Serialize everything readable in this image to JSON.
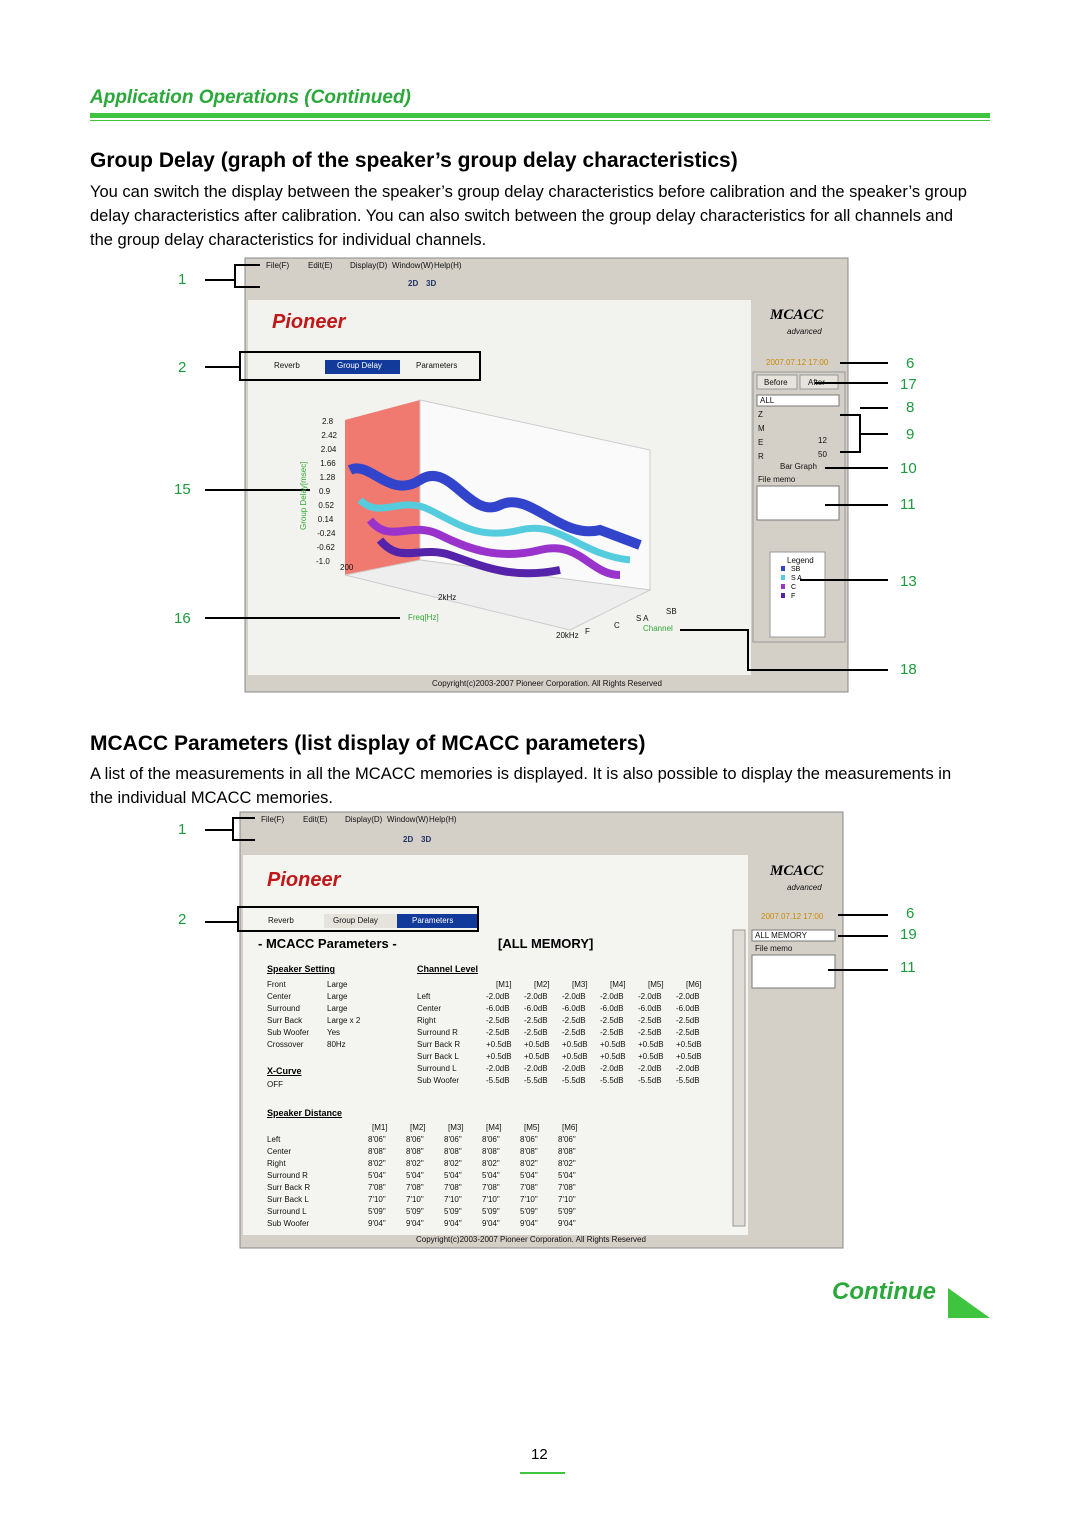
{
  "header": {
    "section": "Application Operations (Continued)"
  },
  "group_delay": {
    "heading": "Group Delay (graph of the speaker’s group delay characteristics)",
    "body": "You can switch the display between the speaker’s group delay characteristics before calibration and the speaker’s group delay characteristics after calibration. You can also switch between the group delay characteristics for all channels and the group delay characteristics for individual channels."
  },
  "window1": {
    "menu": [
      "File(F)",
      "Edit(E)",
      "Display(D)",
      "Window(W)",
      "Help(H)"
    ],
    "toolbar": [
      "2D",
      "3D"
    ],
    "brand": "Pioneer",
    "logo": "MCACC",
    "logo_sub": "advanced",
    "tabs": [
      "Reverb",
      "Group Delay",
      "Parameters"
    ],
    "date": "2007.07.12 17:00",
    "buttons": [
      "Before",
      "After"
    ],
    "select": "ALL",
    "sliders": [
      "Z",
      "M",
      "E",
      "R"
    ],
    "slider_values": [
      "12",
      "50"
    ],
    "bar_graph": "Bar Graph",
    "file_memo": "File memo",
    "y_label": "Group Delay[msec]",
    "y_ticks": [
      "2.8",
      "2.42",
      "2.04",
      "1.66",
      "1.28",
      "0.9",
      "0.52",
      "0.14",
      "-0.24",
      "-0.62",
      "-1.0"
    ],
    "x_ticks": [
      "200",
      "2kHz",
      "20kHz"
    ],
    "x_label": "Freq[Hz]",
    "channels": [
      "SB",
      "S A",
      "C",
      "F"
    ],
    "channel_label": "Channel",
    "legend_title": "Legend",
    "legend": [
      "SB",
      "S A",
      "C",
      "F"
    ],
    "copyright": "Copyright(c)2003-2007 Pioneer Corporation. All Rights Reserved"
  },
  "callouts1": {
    "left": [
      "1",
      "2",
      "15",
      "16"
    ],
    "right": [
      "6",
      "17",
      "8",
      "9",
      "10",
      "11",
      "13",
      "18"
    ]
  },
  "mcacc": {
    "heading": "MCACC Parameters (list display of MCACC parameters)",
    "body": "A list of the measurements in all the MCACC memories is displayed. It is also possible to display the measurements in the individual MCACC memories."
  },
  "window2": {
    "menu": [
      "File(F)",
      "Edit(E)",
      "Display(D)",
      "Window(W)",
      "Help(H)"
    ],
    "toolbar": [
      "2D",
      "3D"
    ],
    "brand": "Pioneer",
    "logo": "MCACC",
    "logo_sub": "advanced",
    "tabs": [
      "Reverb",
      "Group Delay",
      "Parameters"
    ],
    "date": "2007.07.12 17:00",
    "select": "ALL MEMORY",
    "file_memo": "File memo",
    "title": "- MCACC Parameters -",
    "memory": "[ALL MEMORY]",
    "speaker_setting": {
      "title": "Speaker Setting",
      "rows": [
        [
          "Front",
          "Large"
        ],
        [
          "Center",
          "Large"
        ],
        [
          "Surround",
          "Large"
        ],
        [
          "Surr Back",
          "Large x 2"
        ],
        [
          "Sub Woofer",
          "Yes"
        ],
        [
          "Crossover",
          "80Hz"
        ]
      ]
    },
    "x_curve": {
      "title": "X-Curve",
      "value": "OFF"
    },
    "channel_level": {
      "title": "Channel Level",
      "headers": [
        "[M1]",
        "[M2]",
        "[M3]",
        "[M4]",
        "[M5]",
        "[M6]"
      ],
      "rows": [
        [
          "Left",
          "-2.0dB",
          "-2.0dB",
          "-2.0dB",
          "-2.0dB",
          "-2.0dB",
          "-2.0dB"
        ],
        [
          "Center",
          "-6.0dB",
          "-6.0dB",
          "-6.0dB",
          "-6.0dB",
          "-6.0dB",
          "-6.0dB"
        ],
        [
          "Right",
          "-2.5dB",
          "-2.5dB",
          "-2.5dB",
          "-2.5dB",
          "-2.5dB",
          "-2.5dB"
        ],
        [
          "Surround R",
          "-2.5dB",
          "-2.5dB",
          "-2.5dB",
          "-2.5dB",
          "-2.5dB",
          "-2.5dB"
        ],
        [
          "Surr Back R",
          "+0.5dB",
          "+0.5dB",
          "+0.5dB",
          "+0.5dB",
          "+0.5dB",
          "+0.5dB"
        ],
        [
          "Surr Back L",
          "+0.5dB",
          "+0.5dB",
          "+0.5dB",
          "+0.5dB",
          "+0.5dB",
          "+0.5dB"
        ],
        [
          "Surround L",
          "-2.0dB",
          "-2.0dB",
          "-2.0dB",
          "-2.0dB",
          "-2.0dB",
          "-2.0dB"
        ],
        [
          "Sub Woofer",
          "-5.5dB",
          "-5.5dB",
          "-5.5dB",
          "-5.5dB",
          "-5.5dB",
          "-5.5dB"
        ]
      ]
    },
    "speaker_distance": {
      "title": "Speaker Distance",
      "headers": [
        "[M1]",
        "[M2]",
        "[M3]",
        "[M4]",
        "[M5]",
        "[M6]"
      ],
      "rows": [
        [
          "Left",
          "8'06\"",
          "8'06\"",
          "8'06\"",
          "8'06\"",
          "8'06\"",
          "8'06\""
        ],
        [
          "Center",
          "8'08\"",
          "8'08\"",
          "8'08\"",
          "8'08\"",
          "8'08\"",
          "8'08\""
        ],
        [
          "Right",
          "8'02\"",
          "8'02\"",
          "8'02\"",
          "8'02\"",
          "8'02\"",
          "8'02\""
        ],
        [
          "Surround R",
          "5'04\"",
          "5'04\"",
          "5'04\"",
          "5'04\"",
          "5'04\"",
          "5'04\""
        ],
        [
          "Surr Back R",
          "7'08\"",
          "7'08\"",
          "7'08\"",
          "7'08\"",
          "7'08\"",
          "7'08\""
        ],
        [
          "Surr Back L",
          "7'10\"",
          "7'10\"",
          "7'10\"",
          "7'10\"",
          "7'10\"",
          "7'10\""
        ],
        [
          "Surround L",
          "5'09\"",
          "5'09\"",
          "5'09\"",
          "5'09\"",
          "5'09\"",
          "5'09\""
        ],
        [
          "Sub Woofer",
          "9'04\"",
          "9'04\"",
          "9'04\"",
          "9'04\"",
          "9'04\"",
          "9'04\""
        ]
      ]
    },
    "copyright": "Copyright(c)2003-2007 Pioneer Corporation. All Rights Reserved"
  },
  "callouts2": {
    "left": [
      "1",
      "2"
    ],
    "right": [
      "6",
      "19",
      "11"
    ]
  },
  "continue": "Continue",
  "page_number": "12"
}
